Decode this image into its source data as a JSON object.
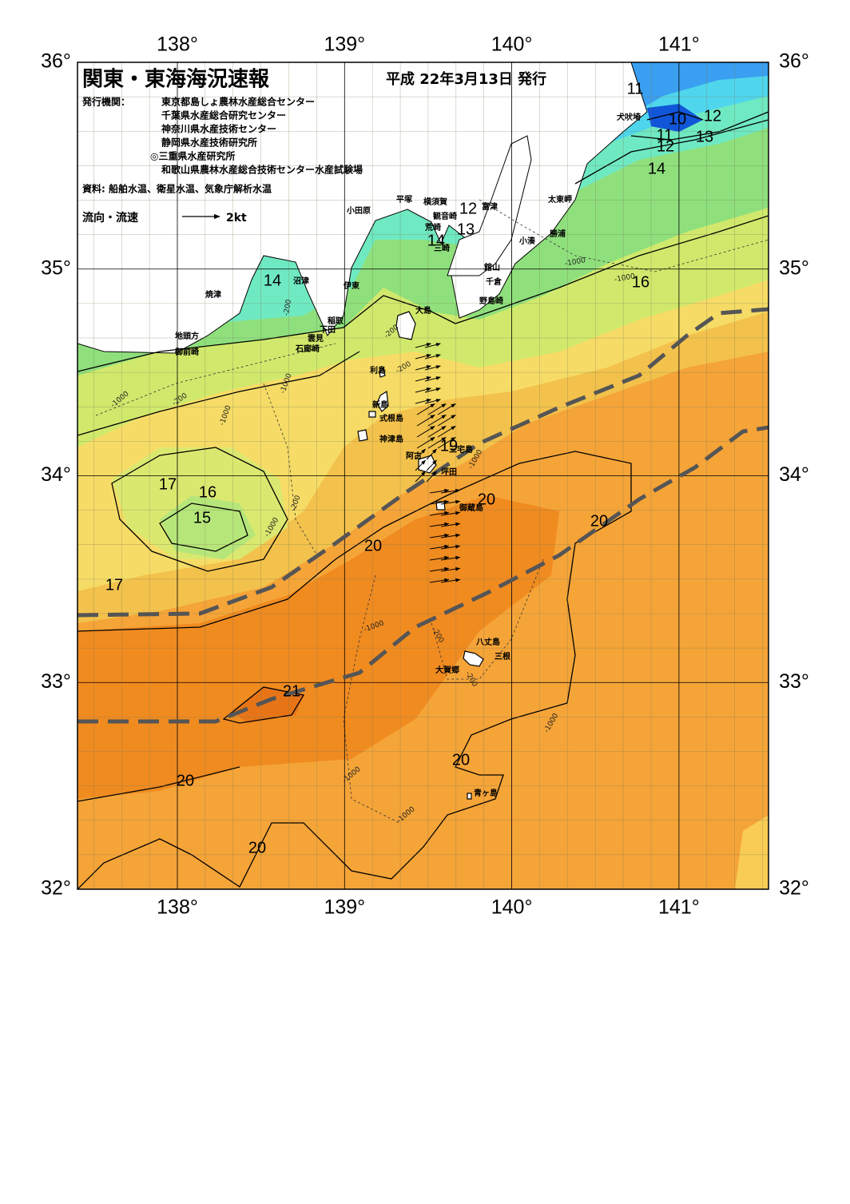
{
  "header": {
    "title": "関東・東海海況速報",
    "date": "平成 22年3月13日 発行"
  },
  "issuers_label": "発行機関：",
  "issuers": [
    "東京都島しょ農林水産総合センター",
    "千葉県水産総合研究センター",
    "神奈川県水産技術センター",
    "静岡県水産技術研究所",
    "◎三重県水産研究所",
    "和歌山県農林水産総合技術センター水産試験場"
  ],
  "source": "資料: 船舶水温、衛星水温、気象庁解析水温",
  "legend": {
    "label": "流向・流速",
    "scale": "2kt"
  },
  "map": {
    "lon_ticks": [
      {
        "value": 138,
        "label": "138°"
      },
      {
        "value": 139,
        "label": "139°"
      },
      {
        "value": 140,
        "label": "140°"
      },
      {
        "value": 141,
        "label": "141°"
      }
    ],
    "lat_ticks": [
      {
        "value": 36,
        "label": "36°"
      },
      {
        "value": 35,
        "label": "35°"
      },
      {
        "value": 34,
        "label": "34°"
      },
      {
        "value": 33,
        "label": "33°"
      },
      {
        "value": 32,
        "label": "32°"
      }
    ],
    "temperature_labels": [
      11,
      10,
      12,
      11,
      13,
      12,
      14,
      12,
      13,
      14,
      14,
      16,
      19,
      20,
      20,
      20,
      17,
      16,
      15,
      17,
      21,
      20,
      20,
      20
    ],
    "depth_labels": [
      "-1000",
      "-200",
      "-1000",
      "-200",
      "-1000",
      "-200",
      "-200",
      "-1000",
      "-1000",
      "-200",
      "-1000",
      "-1000",
      "-1000",
      "-200",
      "-1000",
      "-1000",
      "-1000",
      "-200"
    ],
    "place_names": [
      "犬吠埼",
      "太東岬",
      "勝浦",
      "小湊",
      "館山",
      "千倉",
      "野島崎",
      "富津",
      "横須賀",
      "観音崎",
      "平塚",
      "荒崎",
      "三崎",
      "小田原",
      "伊東",
      "沼津",
      "稲取",
      "下田",
      "雲見",
      "石廊崎",
      "焼津",
      "地頭方",
      "御前崎",
      "大島",
      "利島",
      "新島",
      "式根島",
      "神津島",
      "三宅島",
      "阿古",
      "坪田",
      "御蔵島",
      "八丈島",
      "三根",
      "大賀郷",
      "青ヶ島"
    ]
  }
}
